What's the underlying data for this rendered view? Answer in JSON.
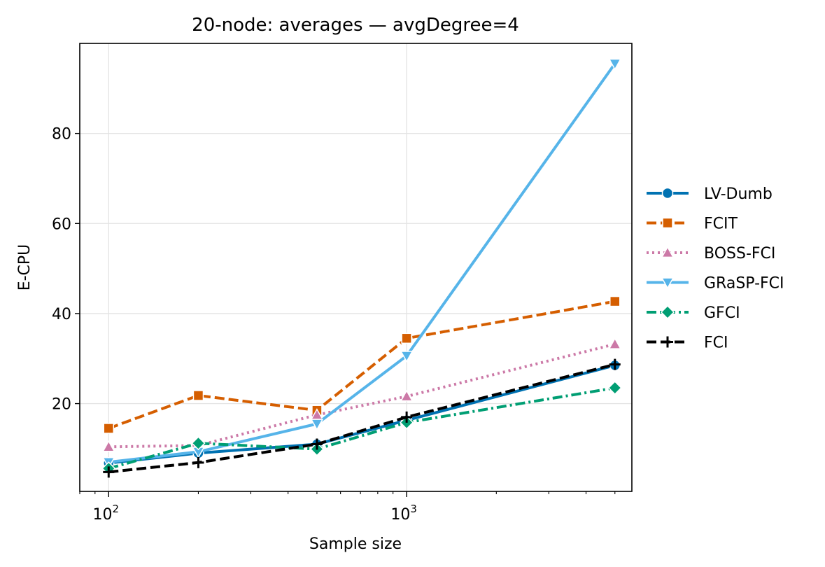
{
  "chart_data": {
    "type": "line",
    "title": "20-node: averages — avgDegree=4",
    "xlabel": "Sample size",
    "ylabel": "E-CPU",
    "xscale": "log",
    "xlim": [
      80,
      5700
    ],
    "ylim": [
      0.5,
      100
    ],
    "x": [
      100,
      200,
      500,
      1000,
      5000
    ],
    "xticks": [
      {
        "value": 100,
        "base": "10",
        "exp": "2"
      },
      {
        "value": 1000,
        "base": "10",
        "exp": "3"
      }
    ],
    "yticks": [
      20,
      40,
      60,
      80
    ],
    "grid": true,
    "legend_position": "right-outside",
    "series": [
      {
        "name": "LV-Dumb",
        "color": "#0072b2",
        "marker": "circle",
        "dash": "solid",
        "values": [
          6.8,
          9.0,
          11.0,
          16.3,
          28.5
        ]
      },
      {
        "name": "FCIT",
        "color": "#d55e00",
        "marker": "square",
        "dash": "dashed",
        "values": [
          14.5,
          21.8,
          18.5,
          34.5,
          42.7
        ]
      },
      {
        "name": "BOSS-FCI",
        "color": "#cc79a7",
        "marker": "triangle-up",
        "dash": "dotted",
        "values": [
          10.4,
          10.7,
          17.5,
          21.6,
          33.2
        ]
      },
      {
        "name": "GRaSP-FCI",
        "color": "#56b4e9",
        "marker": "triangle-down",
        "dash": "solid",
        "values": [
          7.0,
          9.3,
          15.5,
          30.6,
          95.5
        ]
      },
      {
        "name": "GFCI",
        "color": "#009e73",
        "marker": "diamond",
        "dash": "dashdot",
        "values": [
          5.6,
          11.2,
          9.9,
          15.8,
          23.5
        ]
      },
      {
        "name": "FCI",
        "color": "#000000",
        "marker": "plus",
        "dash": "dashed",
        "values": [
          4.8,
          6.9,
          11.0,
          17.0,
          28.7
        ]
      }
    ]
  }
}
